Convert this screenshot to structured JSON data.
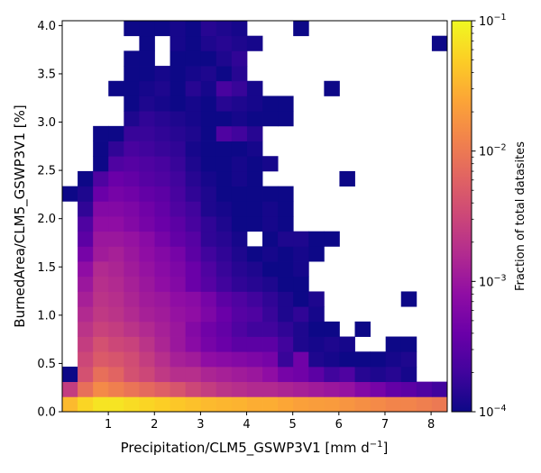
{
  "chart_data": {
    "type": "heatmap",
    "xlabel": "Precipitation/CLM5_GSWP3V1 [mm d",
    "xlabel_sup": "−1",
    "xlabel_end": "]",
    "ylabel": "BurnedArea/CLM5_GSWP3V1 [%]",
    "colorbar_label": "Fraction of total datasites",
    "xlim": [
      0.0,
      8.35
    ],
    "ylim": [
      0.0,
      4.05
    ],
    "x_ticks": [
      1,
      2,
      3,
      4,
      5,
      6,
      7,
      8
    ],
    "x_tick_labels": [
      "1",
      "2",
      "3",
      "4",
      "5",
      "6",
      "7",
      "8"
    ],
    "y_ticks": [
      0.0,
      0.5,
      1.0,
      1.5,
      2.0,
      2.5,
      3.0,
      3.5,
      4.0
    ],
    "y_tick_labels": [
      "0.0",
      "0.5",
      "1.0",
      "1.5",
      "2.0",
      "2.5",
      "3.0",
      "3.5",
      "4.0"
    ],
    "color_scale": "log",
    "colormap": "plasma",
    "vmin": 0.0001,
    "vmax": 0.1,
    "cb_ticks": [
      0.1,
      0.01,
      0.001,
      0.0001
    ],
    "cb_tick_base": [
      "10",
      "10",
      "10",
      "10"
    ],
    "cb_tick_exp": [
      "−1",
      "−2",
      "−3",
      "−4"
    ],
    "bins": {
      "nx": 25,
      "ny": 26,
      "x_min": 0.0,
      "x_max": 8.35,
      "y_min": 0.0,
      "y_max": 4.05
    },
    "cell_log10_values": [
      "-1.45 -1.25 -1.15 -1.15 -1.20 -1.25 -1.30 -1.35 -1.40 -1.45 -1.48 -1.50 -1.55 -1.55 -1.60 -1.65 -1.68 -1.70 -1.75 -1.80 -1.85 -1.90 -1.90 -1.95 -2.00",
      "-2.60 -2.10 -1.85 -1.95 -2.05 -2.15 -2.25 -2.35 -2.50 -2.60 -2.70 -2.75 -2.80 -2.80 -2.85 -2.90 -2.95 -3.00 -3.05 -3.20 -3.30 -3.45 -3.50 -3.60 -3.70",
      "-4.00 -2.40 -2.10 -2.20 -2.40 -2.50 -2.65 -2.75 -2.75 -2.85 -2.90 -2.95 -3.00 -3.10 -3.30 -3.35 -3.50 -3.70 -3.60 -3.85 -3.90 -3.85 -3.95 x x",
      "x -2.50 -2.30 -2.35 -2.45 -2.60 -2.75 -2.90 -2.95 -3.10 -3.15 -3.20 -3.25 -3.30 -3.75 -3.35 -3.90 -3.95 -4.00 -4.00 -4.00 -3.95 -3.90 x x",
      "x -2.60 -2.40 -2.50 -2.55 -2.70 -2.85 -3.00 -3.15 -3.30 -3.40 -3.50 -3.50 -3.50 -3.70 -3.90 -3.95 -3.90 -3.95 x x -4.00 -4.00 x x",
      "x -2.70 -2.55 -2.60 -2.70 -2.80 -2.90 -3.00 -3.20 -3.35 -3.45 -3.60 -3.70 -3.70 -3.80 -3.90 -4.00 -4.00 x -4.00 x x x x x",
      "x -2.80 -2.65 -2.70 -2.80 -2.90 -2.95 -3.05 -3.10 -3.25 -3.40 -3.55 -3.60 -3.75 -3.90 -3.80 -3.95 x x x x x x x x",
      "x -2.90 -2.70 -2.75 -2.85 -2.95 -3.00 -3.10 -3.15 -3.30 -3.50 -3.60 -3.70 -3.80 -3.90 -4.00 -3.90 x x x x x -4.00 x x",
      "x -3.00 -2.75 -2.80 -2.90 -3.00 -3.10 -3.20 -3.40 -3.55 -3.70 -3.80 -3.85 -3.90 -4.00 -4.00 x x x x x x x x x",
      "x -3.10 -2.80 -2.85 -2.95 -3.05 -3.15 -3.25 -3.40 -3.60 -3.75 -3.85 -3.90 -4.00 -4.00 -3.95 x x x x x x x x x",
      "x -3.30 -2.95 -2.90 -3.00 -3.10 -3.20 -3.30 -3.50 -3.70 -3.80 -3.90 -4.00 -3.95 -4.00 -3.95 -4.00 x x x x x x x x",
      "x -3.50 -3.00 -3.00 -3.05 -3.15 -3.30 -3.45 -3.55 -3.80 -3.85 -3.95 x -4.00 -3.90 -3.90 -4.00 -4.00 x x x x x x x",
      "x -3.60 -3.10 -3.10 -3.20 -3.30 -3.40 -3.50 -3.65 -3.80 -3.90 -4.00 -4.00 -3.95 -4.00 x x x x x x x x x x",
      "x -3.80 -3.20 -3.20 -3.25 -3.35 -3.45 -3.60 -3.70 -3.90 -3.95 -4.00 -4.00 -3.95 -4.00 x x x x x x x x x x",
      "-4.00 -3.90 -3.40 -3.30 -3.35 -3.45 -3.50 -3.65 -3.80 -3.90 -4.00 -4.00 -4.00 -4.00 -4.00 x x x x x x x x x x",
      "x -4.00 -3.60 -3.40 -3.45 -3.55 -3.60 -3.70 -3.85 -3.95 -4.00 -3.95 -4.00 x x x x x -4.00 x x x x x x",
      "x x -4.00 -3.60 -3.55 -3.60 -3.65 -3.75 -3.90 -4.00 -4.00 -3.95 -4.00 -3.95 x x x x x x x x x x x",
      "x x -4.00 -3.80 -3.65 -3.70 -3.75 -3.80 -3.95 -4.00 -4.00 -4.00 -3.95 x x x x x x x x x x x x",
      "x x -4.00 -4.00 -3.75 -3.75 -3.80 -3.85 -3.90 -4.00 -3.60 -3.70 -3.85 x x x x x x x x x x x x",
      "x x x x -3.90 -3.80 -3.85 -3.90 -3.95 -4.00 -4.00 -3.95 -4.00 -4.00 -4.00 x x x x x x x x x x",
      "x x x x -4.00 -3.90 -3.95 -4.00 -3.95 -4.00 -3.85 -3.90 -3.95 -4.00 -4.00 x x x x x x x x x x",
      "x x x -4.00 -4.00 -3.95 -3.90 -4.00 -3.85 -3.95 -3.65 -3.75 -3.95 x x x x -4.00 x x x x x x x",
      "x x x x -4.00 -4.00 -3.95 -4.00 -3.95 -3.90 -4.00 -3.85 x x x x x x x x x x x x x",
      "x x x x -4.00 -4.00 x -4.00 -4.00 -4.00 -3.90 -3.80 x x x x x x x x x x x x x",
      "x x x x x -4.00 x -3.95 -4.00 -3.90 -3.85 -3.90 -3.95 x x x x x x x x x x x -4.00",
      "x x x x -4.00 -4.00 -4.00 -3.95 -4.00 -3.85 -3.90 -3.95 x x x -4.00 x x x x x x x x x"
    ]
  }
}
